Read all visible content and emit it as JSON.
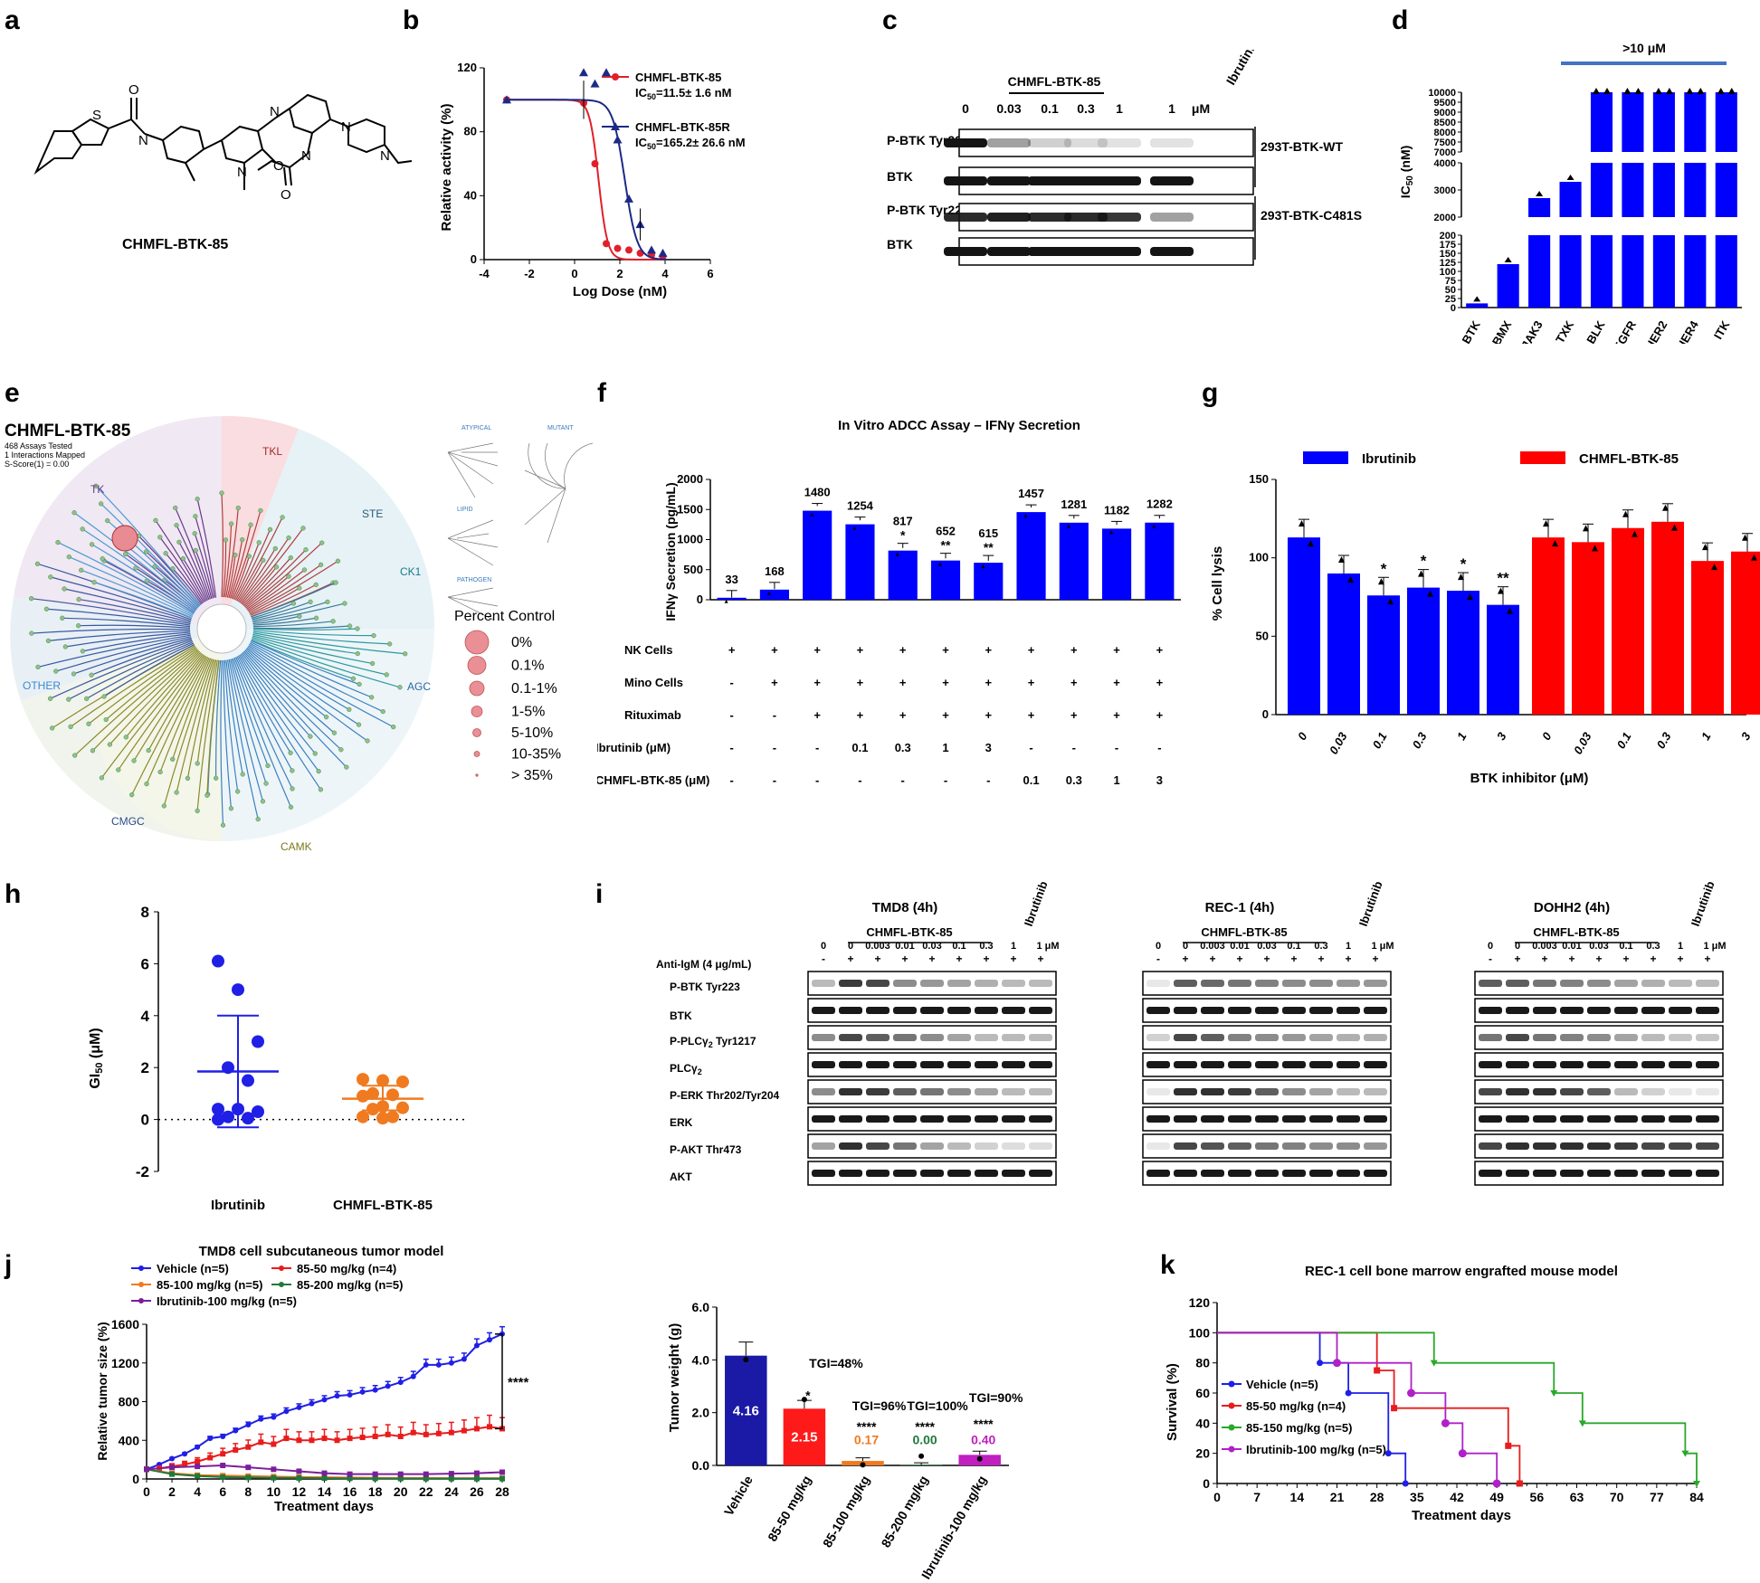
{
  "letters": [
    "a",
    "b",
    "c",
    "d",
    "e",
    "f",
    "g",
    "h",
    "i",
    "j",
    "k"
  ],
  "panel_a": {
    "compound": "CHMFL-BTK-85",
    "atoms": [
      "S",
      "O",
      "N",
      "N",
      "O",
      "N",
      "N",
      "N",
      "O",
      "N"
    ]
  },
  "panel_b": {
    "chart_data": {
      "type": "line",
      "xlabel": "Log Dose (nM)",
      "ylabel": "Relative activity (%)",
      "xlim": [
        -4,
        6
      ],
      "ylim": [
        0,
        120
      ],
      "xticks": [
        "-4",
        "-2",
        "0",
        "2",
        "4",
        "6"
      ],
      "yticks": [
        "0",
        "40",
        "80",
        "120"
      ],
      "series": [
        {
          "name": "CHMFL-BTK-85",
          "ic50": "IC50=11.5± 1.6 nM",
          "ic50_prefix": "IC",
          "ic50_sub": "50",
          "ic50_rest": "=11.5± 1.6 nM",
          "color": "#e0202a",
          "x": [
            -3,
            0.4,
            0.9,
            1.4,
            1.9,
            2.4,
            2.9,
            3.4,
            3.9
          ],
          "y": [
            100,
            98,
            60,
            10,
            7,
            6,
            4,
            3,
            2
          ]
        },
        {
          "name": "CHMFL-BTK-85R",
          "ic50": "IC50=165.2± 26.6 nM",
          "ic50_prefix": "IC",
          "ic50_sub": "50",
          "ic50_rest": "=165.2± 26.6 nM",
          "color": "#1c2a86",
          "x": [
            -3,
            0.4,
            0.9,
            1.4,
            1.9,
            2.4,
            2.9,
            3.4,
            3.9
          ],
          "y": [
            100,
            117,
            110,
            117,
            75,
            38,
            22,
            6,
            4
          ]
        }
      ]
    }
  },
  "panel_c": {
    "header": "CHMFL-BTK-85",
    "ibrutinib": "Ibrutinib",
    "doses": [
      "0",
      "0.03",
      "0.1",
      "0.3",
      "1",
      "1",
      "μM"
    ],
    "rows": [
      "P-BTK Tyr223",
      "BTK",
      "P-BTK Tyr223",
      "BTK"
    ],
    "groups": [
      "293T-BTK-WT",
      "293T-BTK-C481S"
    ]
  },
  "panel_d": {
    "chart_data": {
      "type": "bar",
      "ylabel": "IC50 (nM)",
      "ylabel_main": "IC",
      "ylabel_sub": "50",
      "ylabel_rest": " (nM)",
      "categories": [
        "BTK",
        "BMX",
        "JAK3",
        "TXK",
        "BLK",
        "EGFR",
        "HER2",
        "HER4",
        "ITK"
      ],
      "values": [
        11.5,
        120,
        2700,
        3300,
        10000,
        10000,
        10000,
        10000,
        10000
      ],
      "annotation": ">10 μM",
      "ytick_groups": [
        [
          "0",
          "25",
          "50",
          "75",
          "100",
          "125",
          "150",
          "175",
          "200"
        ],
        [
          "2000",
          "3000",
          "4000"
        ],
        [
          "7000",
          "7500",
          "8000",
          "8500",
          "9000",
          "9500",
          "10000"
        ]
      ],
      "color": "#0000ff"
    }
  },
  "panel_e": {
    "title": "CHMFL-BTK-85",
    "sub": [
      "468 Assays Tested",
      "1 Interactions Mapped",
      "S-Score(1) = 0.00"
    ],
    "families": [
      "TK",
      "TKL",
      "STE",
      "CK1",
      "AGC",
      "CAMK",
      "CMGC",
      "OTHER"
    ],
    "mini": [
      "ATYPICAL",
      "MUTANT",
      "LIPID",
      "PATHOGEN"
    ],
    "legend_title": "Percent Control",
    "legend": [
      "0%",
      "0.1%",
      "0.1-1%",
      "1-5%",
      "5-10%",
      "10-35%",
      "> 35%"
    ]
  },
  "panel_f": {
    "chart_data": {
      "type": "bar",
      "title": "In Vitro ADCC Assay –  IFNγ Secretion",
      "ylabel": "IFNγ Secretion (pg/mL)",
      "ylim": [
        0,
        2000
      ],
      "yticks": [
        "0",
        "500",
        "1000",
        "1500",
        "2000"
      ],
      "values": [
        33,
        168,
        1480,
        1254,
        817,
        652,
        615,
        1457,
        1281,
        1182,
        1282
      ],
      "labels": [
        "33",
        "168",
        "1480",
        "1254",
        "817",
        "652",
        "615",
        "1457",
        "1281",
        "1182",
        "1282"
      ],
      "stars": [
        "",
        "",
        "",
        "",
        "*",
        "**",
        "**",
        "",
        "",
        "",
        ""
      ],
      "color": "#0000ff"
    },
    "table": [
      {
        "label": "NK Cells",
        "cells": [
          "+",
          "+",
          "+",
          "+",
          "+",
          "+",
          "+",
          "+",
          "+",
          "+",
          "+"
        ]
      },
      {
        "label": "Mino Cells",
        "cells": [
          "-",
          "+",
          "+",
          "+",
          "+",
          "+",
          "+",
          "+",
          "+",
          "+",
          "+"
        ]
      },
      {
        "label": "Rituximab",
        "cells": [
          "-",
          "-",
          "+",
          "+",
          "+",
          "+",
          "+",
          "+",
          "+",
          "+",
          "+"
        ]
      },
      {
        "label": "Ibrutinib (μM)",
        "cells": [
          "-",
          "-",
          "-",
          "0.1",
          "0.3",
          "1",
          "3",
          "-",
          "-",
          "-",
          "-"
        ]
      },
      {
        "label": "CHMFL-BTK-85 (μM)",
        "cells": [
          "-",
          "-",
          "-",
          "-",
          "-",
          "-",
          "-",
          "0.1",
          "0.3",
          "1",
          "3"
        ]
      }
    ]
  },
  "panel_g": {
    "chart_data": {
      "type": "bar",
      "ylabel": "% Cell lysis",
      "xlabel": "BTK inhibitor (μM)",
      "ylim": [
        0,
        150
      ],
      "yticks": [
        "0",
        "50",
        "100",
        "150"
      ],
      "series": [
        {
          "name": "Ibrutinib",
          "color": "#0000ff",
          "values": [
            113,
            90,
            76,
            81,
            79,
            70
          ],
          "stars": [
            "",
            "",
            "*",
            "*",
            "*",
            "**"
          ]
        },
        {
          "name": "CHMFL-BTK-85",
          "color": "#ff0000",
          "values": [
            113,
            110,
            119,
            123,
            98,
            104
          ],
          "stars": [
            "",
            "",
            "",
            "",
            "",
            ""
          ]
        }
      ],
      "categories": [
        "0",
        "0.03",
        "0.1",
        "0.3",
        "1",
        "3"
      ]
    }
  },
  "panel_h": {
    "chart_data": {
      "type": "scatter",
      "ylabel": "GI50 (μM)",
      "ylabel_main": "GI",
      "ylabel_sub": "50",
      "ylabel_rest": " (μM)",
      "ylim": [
        -2,
        8
      ],
      "yticks": [
        "-2",
        "0",
        "2",
        "4",
        "6",
        "8"
      ],
      "groups": [
        {
          "name": "Ibrutinib",
          "color": "#1f1fe6",
          "mean": 1.85,
          "sd_low": -0.3,
          "sd_high": 4.0,
          "points": [
            6.1,
            5.0,
            3.0,
            2.0,
            1.5,
            0.4,
            0.4,
            0.3,
            0.1,
            0.05,
            0.0
          ]
        },
        {
          "name": "CHMFL-BTK-85",
          "color": "#f07a20",
          "mean": 0.8,
          "sd_low": 0.35,
          "sd_high": 1.3,
          "points": [
            1.55,
            1.5,
            1.45,
            1.0,
            0.95,
            0.9,
            0.5,
            0.45,
            0.4,
            0.1,
            0.1,
            0.05
          ]
        }
      ]
    }
  },
  "panel_i": {
    "blots": [
      {
        "title": "TMD8 (4h)"
      },
      {
        "title": "REC-1 (4h)"
      },
      {
        "title": "DOHH2 (4h)"
      }
    ],
    "compound": "CHMFL-BTK-85",
    "ibrutinib": "Ibrutinib",
    "doses": [
      "0",
      "0",
      "0.003",
      "0.01",
      "0.03",
      "0.1",
      "0.3",
      "1",
      "1 μM"
    ],
    "igm": [
      "-",
      "+",
      "+",
      "+",
      "+",
      "+",
      "+",
      "+",
      "+"
    ],
    "igm_label": "Anti-IgM (4 μg/mL)",
    "rows": [
      "P-BTK Tyr223",
      "BTK",
      "P-PLCγ2 Tyr1217",
      "PLCγ2",
      "P-ERK Thr202/Tyr204",
      "ERK",
      "P-AKT Thr473",
      "AKT"
    ]
  },
  "panel_j": {
    "line": {
      "chart_data": {
        "type": "line",
        "title": "TMD8 cell subcutaneous tumor model",
        "xlabel": "Treatment days",
        "ylabel": "Relative tumor size (%)",
        "xlim": [
          0,
          28
        ],
        "ylim": [
          0,
          1600
        ],
        "xticks": [
          "0",
          "2",
          "4",
          "6",
          "8",
          "10",
          "12",
          "14",
          "16",
          "18",
          "20",
          "22",
          "24",
          "26",
          "28"
        ],
        "yticks": [
          "0",
          "400",
          "800",
          "1200",
          "1600"
        ],
        "significance": "****",
        "series": [
          {
            "name": "Vehicle (n=5)",
            "color": "#1f1fe6",
            "x": [
              0,
              1,
              2,
              3,
              4,
              5,
              6,
              7,
              8,
              9,
              10,
              11,
              12,
              13,
              14,
              15,
              16,
              17,
              18,
              19,
              20,
              21,
              22,
              23,
              24,
              25,
              26,
              27,
              28
            ],
            "y": [
              100,
              150,
              210,
              260,
              330,
              420,
              440,
              500,
              560,
              620,
              640,
              700,
              740,
              780,
              820,
              860,
              870,
              900,
              920,
              960,
              1000,
              1060,
              1180,
              1180,
              1200,
              1240,
              1380,
              1440,
              1500
            ]
          },
          {
            "name": "85-50 mg/kg (n=4)",
            "color": "#e81c1c",
            "x": [
              0,
              1,
              2,
              3,
              4,
              5,
              6,
              7,
              8,
              9,
              10,
              11,
              12,
              13,
              14,
              15,
              16,
              17,
              18,
              19,
              20,
              21,
              22,
              23,
              24,
              25,
              26,
              27,
              28
            ],
            "y": [
              100,
              110,
              130,
              150,
              180,
              220,
              260,
              300,
              330,
              380,
              360,
              420,
              400,
              400,
              420,
              400,
              420,
              430,
              440,
              460,
              440,
              480,
              460,
              470,
              480,
              500,
              520,
              540,
              520
            ]
          },
          {
            "name": "85-100 mg/kg (n=5)",
            "color": "#f07a20",
            "x": [
              0,
              2,
              4,
              6,
              8,
              10,
              12,
              14,
              16,
              18,
              20,
              22,
              24,
              26,
              28
            ],
            "y": [
              100,
              60,
              40,
              35,
              30,
              25,
              20,
              18,
              15,
              12,
              10,
              10,
              8,
              8,
              8
            ]
          },
          {
            "name": "85-200 mg/kg (n=5)",
            "color": "#1f7a3a",
            "x": [
              0,
              2,
              4,
              6,
              8,
              10,
              12,
              14,
              16,
              18,
              20,
              22,
              24,
              26,
              28
            ],
            "y": [
              100,
              50,
              30,
              20,
              15,
              12,
              10,
              8,
              6,
              5,
              4,
              4,
              3,
              3,
              3
            ]
          },
          {
            "name": "Ibrutinib-100 mg/kg (n=5)",
            "color": "#7a1f9a",
            "x": [
              0,
              2,
              4,
              6,
              8,
              10,
              12,
              14,
              16,
              18,
              20,
              22,
              24,
              26,
              28
            ],
            "y": [
              100,
              120,
              130,
              140,
              120,
              100,
              80,
              60,
              50,
              50,
              50,
              50,
              55,
              60,
              70
            ]
          }
        ]
      }
    },
    "bar": {
      "chart_data": {
        "type": "bar",
        "ylabel": "Tumor weight (g)",
        "ylim": [
          0,
          6
        ],
        "yticks": [
          "0.0",
          "2.0",
          "4.0",
          "6.0"
        ],
        "categories": [
          "Vehicle",
          "85-50 mg/kg",
          "85-100 mg/kg",
          "85-200 mg/kg",
          "Ibrutinib-100 mg/kg"
        ],
        "values": [
          4.16,
          2.15,
          0.17,
          0.0,
          0.4
        ],
        "value_labels": [
          "4.16",
          "2.15",
          "0.17",
          "0.00",
          "0.40"
        ],
        "label_colors": [
          "#ffffff",
          "#ffffff",
          "#f07a20",
          "#1f7a3a",
          "#c020c0"
        ],
        "tgi": [
          "",
          "TGI=48%",
          "TGI=96%",
          "TGI=100%",
          "TGI=90%"
        ],
        "stars": [
          "",
          "*",
          "****",
          "****",
          "****"
        ],
        "colors": [
          "#1a1aa6",
          "#ff1a1a",
          "#f07a20",
          "#1f7a3a",
          "#c020c0"
        ]
      }
    }
  },
  "panel_k": {
    "chart_data": {
      "type": "line",
      "title": "REC-1 cell bone marrow engrafted mouse model",
      "xlabel": "Treatment days",
      "ylabel": "Survival (%)",
      "xlim": [
        0,
        84
      ],
      "ylim": [
        0,
        120
      ],
      "xticks": [
        "0",
        "7",
        "14",
        "21",
        "28",
        "35",
        "42",
        "49",
        "56",
        "63",
        "70",
        "77",
        "84"
      ],
      "yticks": [
        "0",
        "20",
        "40",
        "60",
        "80",
        "100",
        "120"
      ],
      "series": [
        {
          "name": "Vehicle (n=5)",
          "color": "#1f1fe6",
          "steps": [
            [
              0,
              100
            ],
            [
              18,
              100
            ],
            [
              18,
              80
            ],
            [
              23,
              80
            ],
            [
              23,
              60
            ],
            [
              30,
              60
            ],
            [
              30,
              20
            ],
            [
              33,
              20
            ],
            [
              33,
              0
            ]
          ]
        },
        {
          "name": "85-50 mg/kg (n=4)",
          "color": "#e81c1c",
          "steps": [
            [
              0,
              100
            ],
            [
              28,
              100
            ],
            [
              28,
              75
            ],
            [
              31,
              75
            ],
            [
              31,
              50
            ],
            [
              51,
              50
            ],
            [
              51,
              25
            ],
            [
              53,
              25
            ],
            [
              53,
              0
            ]
          ]
        },
        {
          "name": "85-150 mg/kg (n=5)",
          "color": "#2aa82a",
          "steps": [
            [
              0,
              100
            ],
            [
              38,
              100
            ],
            [
              38,
              80
            ],
            [
              59,
              80
            ],
            [
              59,
              60
            ],
            [
              64,
              60
            ],
            [
              64,
              40
            ],
            [
              82,
              40
            ],
            [
              82,
              20
            ],
            [
              84,
              20
            ],
            [
              84,
              0
            ]
          ]
        },
        {
          "name": "Ibrutinib-100 mg/kg (n=5)",
          "color": "#b020c8",
          "steps": [
            [
              0,
              100
            ],
            [
              21,
              100
            ],
            [
              21,
              80
            ],
            [
              34,
              80
            ],
            [
              34,
              60
            ],
            [
              40,
              60
            ],
            [
              40,
              40
            ],
            [
              43,
              40
            ],
            [
              43,
              20
            ],
            [
              49,
              20
            ],
            [
              49,
              0
            ]
          ]
        }
      ]
    }
  }
}
